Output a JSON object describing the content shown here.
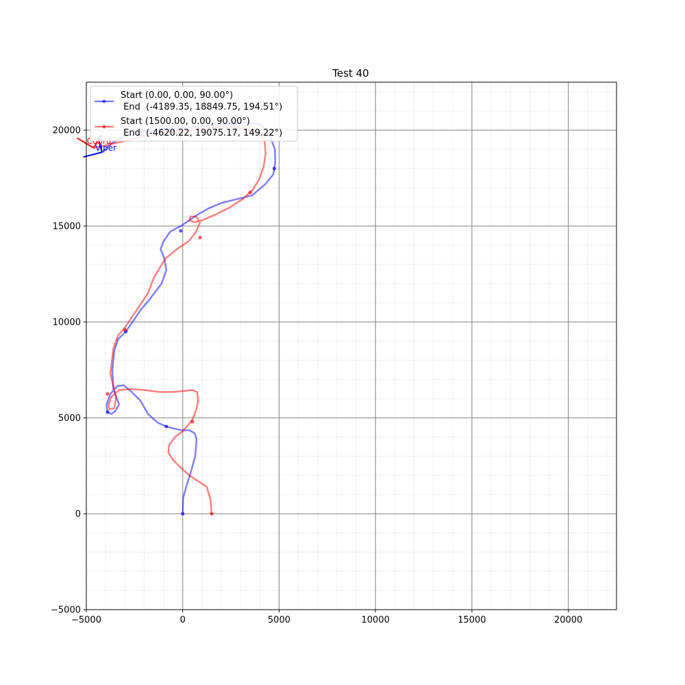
{
  "chart_data": {
    "type": "line",
    "title": "Test 40",
    "xlabel": "",
    "ylabel": "",
    "xlim": [
      -5000,
      22500
    ],
    "ylim": [
      -5000,
      22500
    ],
    "x_ticks": [
      -5000,
      0,
      5000,
      10000,
      15000,
      20000
    ],
    "y_ticks": [
      -5000,
      0,
      5000,
      10000,
      15000,
      20000
    ],
    "x_tick_labels": [
      "−5000",
      "0",
      "5000",
      "10000",
      "15000",
      "20000"
    ],
    "y_tick_labels": [
      "−5000",
      "0",
      "5000",
      "10000",
      "15000",
      "20000"
    ],
    "grid": true,
    "legend_placement": "top-left",
    "series": [
      {
        "name": "Start (0.00, 0.00, 90.00°)",
        "name_line2": " End  (-4189.35, 18849.75, 194.51°)",
        "end_label": "Viper",
        "color": "#0000ff",
        "x": [
          0,
          20,
          150,
          400,
          650,
          720,
          620,
          350,
          0,
          -500,
          -850,
          -1300,
          -1800,
          -2200,
          -2700,
          -3050,
          -3400,
          -3750,
          -3950,
          -3900,
          -3700,
          -3500,
          -3300,
          -3600,
          -3650,
          -3550,
          -3350,
          -2950,
          -2600,
          -2200,
          -1700,
          -1100,
          -850,
          -950,
          -1150,
          -1000,
          -650,
          -300,
          -100,
          200,
          700,
          1300,
          2000,
          2800,
          3600,
          4300,
          4700,
          4800,
          4780,
          4600,
          4350,
          4000,
          3400,
          2600,
          1600,
          400,
          -800,
          -2000,
          -3000,
          -3700,
          -4189
        ],
        "y": [
          0,
          800,
          1300,
          2100,
          3000,
          3900,
          4200,
          4350,
          4350,
          4450,
          4550,
          4750,
          5200,
          5900,
          6400,
          6700,
          6650,
          6250,
          5700,
          5300,
          5200,
          5350,
          5700,
          6500,
          7500,
          8500,
          9100,
          9500,
          10000,
          10600,
          11200,
          12000,
          12700,
          13300,
          13800,
          14200,
          14700,
          14900,
          15000,
          15200,
          15550,
          15900,
          16200,
          16400,
          16600,
          17200,
          17700,
          18300,
          19000,
          19500,
          20000,
          20300,
          20400,
          20350,
          20250,
          20150,
          20050,
          19950,
          19700,
          19300,
          18849
        ],
        "markers_x": [
          0,
          -850,
          -3900,
          -2950,
          -100,
          4750
        ],
        "markers_y": [
          0,
          4550,
          5300,
          9500,
          14750,
          18000
        ]
      },
      {
        "name": "Start (1500.00, 0.00, 90.00°)",
        "name_line2": " End  (-4620.22, 19075.17, 149.22°)",
        "end_label": "Cobra",
        "color": "#ff0000",
        "x": [
          1500,
          1450,
          1250,
          800,
          350,
          -100,
          -500,
          -750,
          -700,
          -400,
          0,
          300,
          500,
          700,
          800,
          750,
          500,
          100,
          -500,
          -1200,
          -2000,
          -2700,
          -3300,
          -3700,
          -3850,
          -3800,
          -3550,
          -3450,
          -3750,
          -3600,
          -3350,
          -3000,
          -2600,
          -2200,
          -1800,
          -1500,
          -900,
          -300,
          300,
          700,
          900,
          700,
          400,
          350,
          600,
          1000,
          1700,
          2400,
          3100,
          3600,
          3950,
          4200,
          4300,
          4250,
          4000,
          3300,
          2200,
          900,
          -700,
          -2300,
          -3600,
          -4620
        ],
        "y": [
          0,
          700,
          1400,
          1700,
          2000,
          2400,
          2800,
          3200,
          3600,
          4000,
          4300,
          4650,
          4900,
          5400,
          5900,
          6350,
          6450,
          6400,
          6350,
          6350,
          6450,
          6500,
          6450,
          6100,
          5700,
          5450,
          5500,
          6050,
          7300,
          8600,
          9300,
          9700,
          10300,
          10900,
          11500,
          12300,
          13300,
          13800,
          14200,
          14700,
          15200,
          15500,
          15500,
          15300,
          15200,
          15300,
          15600,
          15950,
          16400,
          16850,
          17400,
          18100,
          18800,
          19400,
          19800,
          20050,
          20200,
          20100,
          19900,
          19600,
          19300,
          19075
        ],
        "markers_x": [
          1500,
          500,
          -3900,
          -3000,
          900,
          3500
        ],
        "markers_y": [
          0,
          4800,
          6250,
          9600,
          14400,
          16750
        ]
      }
    ],
    "end_arrows": [
      {
        "series": 0,
        "x": -4189,
        "y": 18849,
        "heading_deg": 194.51
      },
      {
        "series": 1,
        "x": -4620,
        "y": 19075,
        "heading_deg": 149.22
      }
    ]
  }
}
